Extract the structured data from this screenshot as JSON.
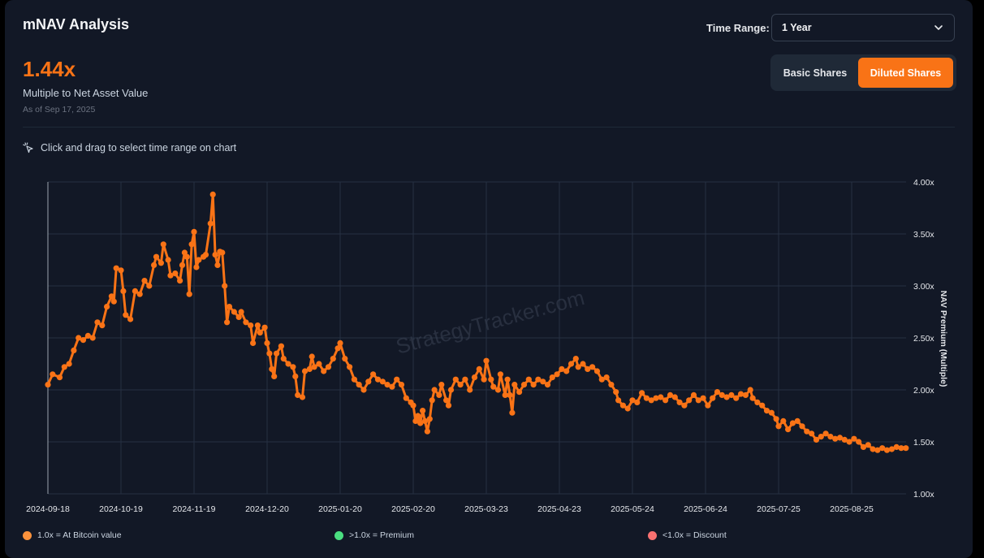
{
  "header": {
    "title": "mNAV Analysis",
    "value": "1.44x",
    "subtitle": "Multiple to Net Asset Value",
    "as_of": "As of Sep 17, 2025"
  },
  "controls": {
    "time_range_label": "Time Range:",
    "time_range_value": "1 Year",
    "share_toggle": {
      "basic_label": "Basic Shares",
      "diluted_label": "Diluted Shares",
      "selected": "Diluted Shares"
    }
  },
  "hint_text": "Click and drag to select time range on chart",
  "watermark": "StrategyTracker.com",
  "legend": [
    {
      "label": "1.0x = At Bitcoin value",
      "color": "#fb923c"
    },
    {
      "label": ">1.0x = Premium",
      "color": "#4ade80"
    },
    {
      "label": "<1.0x = Discount",
      "color": "#f87171"
    }
  ],
  "colors": {
    "accent": "#f97316",
    "background": "#121826",
    "grid": "#263042"
  },
  "chart_data": {
    "type": "line",
    "ylabel": "NAV Premium (Multiple)",
    "ylim": [
      1.0,
      4.0
    ],
    "y_ticks": [
      "1.00x",
      "1.50x",
      "2.00x",
      "2.50x",
      "3.00x",
      "3.50x",
      "4.00x"
    ],
    "y_tick_values": [
      1.0,
      1.5,
      2.0,
      2.5,
      3.0,
      3.5,
      4.0
    ],
    "x_ticks": [
      "2024-09-18",
      "2024-10-19",
      "2024-11-19",
      "2024-12-20",
      "2025-01-20",
      "2025-02-20",
      "2025-03-23",
      "2025-04-23",
      "2025-05-24",
      "2025-06-24",
      "2025-07-25",
      "2025-08-25"
    ],
    "grid": true,
    "series": [
      {
        "color": "#f97316",
        "points": [
          [
            "2024-09-18",
            2.05
          ],
          [
            "2024-09-20",
            2.15
          ],
          [
            "2024-09-23",
            2.12
          ],
          [
            "2024-09-25",
            2.22
          ],
          [
            "2024-09-27",
            2.25
          ],
          [
            "2024-09-29",
            2.38
          ],
          [
            "2024-10-01",
            2.5
          ],
          [
            "2024-10-03",
            2.48
          ],
          [
            "2024-10-05",
            2.52
          ],
          [
            "2024-10-07",
            2.5
          ],
          [
            "2024-10-09",
            2.65
          ],
          [
            "2024-10-11",
            2.62
          ],
          [
            "2024-10-13",
            2.8
          ],
          [
            "2024-10-15",
            2.9
          ],
          [
            "2024-10-16",
            2.85
          ],
          [
            "2024-10-17",
            3.17
          ],
          [
            "2024-10-19",
            3.15
          ],
          [
            "2024-10-20",
            2.95
          ],
          [
            "2024-10-21",
            2.72
          ],
          [
            "2024-10-23",
            2.68
          ],
          [
            "2024-10-25",
            2.95
          ],
          [
            "2024-10-27",
            2.92
          ],
          [
            "2024-10-29",
            3.05
          ],
          [
            "2024-10-31",
            3.0
          ],
          [
            "2024-11-02",
            3.2
          ],
          [
            "2024-11-03",
            3.28
          ],
          [
            "2024-11-05",
            3.22
          ],
          [
            "2024-11-06",
            3.4
          ],
          [
            "2024-11-08",
            3.25
          ],
          [
            "2024-11-09",
            3.1
          ],
          [
            "2024-11-11",
            3.12
          ],
          [
            "2024-11-13",
            3.05
          ],
          [
            "2024-11-14",
            3.2
          ],
          [
            "2024-11-15",
            3.32
          ],
          [
            "2024-11-16",
            3.28
          ],
          [
            "2024-11-17",
            2.92
          ],
          [
            "2024-11-18",
            3.4
          ],
          [
            "2024-11-19",
            3.52
          ],
          [
            "2024-11-20",
            3.18
          ],
          [
            "2024-11-21",
            3.25
          ],
          [
            "2024-11-23",
            3.28
          ],
          [
            "2024-11-24",
            3.3
          ],
          [
            "2024-11-26",
            3.6
          ],
          [
            "2024-11-27",
            3.88
          ],
          [
            "2024-11-28",
            3.3
          ],
          [
            "2024-11-29",
            3.2
          ],
          [
            "2024-11-30",
            3.33
          ],
          [
            "2024-12-01",
            3.32
          ],
          [
            "2024-12-02",
            3.0
          ],
          [
            "2024-12-03",
            2.65
          ],
          [
            "2024-12-04",
            2.8
          ],
          [
            "2024-12-06",
            2.75
          ],
          [
            "2024-12-08",
            2.7
          ],
          [
            "2024-12-09",
            2.75
          ],
          [
            "2024-12-11",
            2.65
          ],
          [
            "2024-12-13",
            2.62
          ],
          [
            "2024-12-14",
            2.45
          ],
          [
            "2024-12-16",
            2.62
          ],
          [
            "2024-12-17",
            2.55
          ],
          [
            "2024-12-19",
            2.6
          ],
          [
            "2024-12-20",
            2.45
          ],
          [
            "2024-12-21",
            2.35
          ],
          [
            "2024-12-22",
            2.2
          ],
          [
            "2024-12-23",
            2.13
          ],
          [
            "2024-12-24",
            2.35
          ],
          [
            "2024-12-26",
            2.42
          ],
          [
            "2024-12-27",
            2.3
          ],
          [
            "2024-12-29",
            2.25
          ],
          [
            "2024-12-31",
            2.22
          ],
          [
            "2025-01-01",
            2.13
          ],
          [
            "2025-01-02",
            1.95
          ],
          [
            "2025-01-04",
            1.93
          ],
          [
            "2025-01-05",
            2.18
          ],
          [
            "2025-01-07",
            2.2
          ],
          [
            "2025-01-08",
            2.32
          ],
          [
            "2025-01-09",
            2.22
          ],
          [
            "2025-01-11",
            2.25
          ],
          [
            "2025-01-13",
            2.18
          ],
          [
            "2025-01-15",
            2.22
          ],
          [
            "2025-01-17",
            2.3
          ],
          [
            "2025-01-19",
            2.4
          ],
          [
            "2025-01-20",
            2.45
          ],
          [
            "2025-01-22",
            2.3
          ],
          [
            "2025-01-24",
            2.22
          ],
          [
            "2025-01-26",
            2.1
          ],
          [
            "2025-01-28",
            2.05
          ],
          [
            "2025-01-30",
            2.0
          ],
          [
            "2025-02-01",
            2.08
          ],
          [
            "2025-02-03",
            2.15
          ],
          [
            "2025-02-05",
            2.1
          ],
          [
            "2025-02-07",
            2.08
          ],
          [
            "2025-02-09",
            2.05
          ],
          [
            "2025-02-11",
            2.03
          ],
          [
            "2025-02-13",
            2.1
          ],
          [
            "2025-02-15",
            2.05
          ],
          [
            "2025-02-17",
            1.92
          ],
          [
            "2025-02-19",
            1.88
          ],
          [
            "2025-02-20",
            1.85
          ],
          [
            "2025-02-21",
            1.7
          ],
          [
            "2025-02-22",
            1.75
          ],
          [
            "2025-02-23",
            1.68
          ],
          [
            "2025-02-24",
            1.8
          ],
          [
            "2025-02-25",
            1.7
          ],
          [
            "2025-02-26",
            1.6
          ],
          [
            "2025-02-27",
            1.72
          ],
          [
            "2025-02-28",
            1.9
          ],
          [
            "2025-03-01",
            2.0
          ],
          [
            "2025-03-03",
            1.95
          ],
          [
            "2025-03-04",
            2.05
          ],
          [
            "2025-03-06",
            1.9
          ],
          [
            "2025-03-07",
            1.85
          ],
          [
            "2025-03-08",
            2.0
          ],
          [
            "2025-03-10",
            2.1
          ],
          [
            "2025-03-12",
            2.05
          ],
          [
            "2025-03-14",
            2.1
          ],
          [
            "2025-03-16",
            2.0
          ],
          [
            "2025-03-18",
            2.12
          ],
          [
            "2025-03-20",
            2.2
          ],
          [
            "2025-03-22",
            2.1
          ],
          [
            "2025-03-23",
            2.28
          ],
          [
            "2025-03-25",
            2.1
          ],
          [
            "2025-03-26",
            2.03
          ],
          [
            "2025-03-28",
            2.0
          ],
          [
            "2025-03-29",
            2.15
          ],
          [
            "2025-03-31",
            1.95
          ],
          [
            "2025-04-01",
            2.1
          ],
          [
            "2025-04-02",
            1.95
          ],
          [
            "2025-04-03",
            1.78
          ],
          [
            "2025-04-04",
            2.05
          ],
          [
            "2025-04-06",
            1.98
          ],
          [
            "2025-04-08",
            2.05
          ],
          [
            "2025-04-10",
            2.1
          ],
          [
            "2025-04-12",
            2.05
          ],
          [
            "2025-04-14",
            2.1
          ],
          [
            "2025-04-16",
            2.08
          ],
          [
            "2025-04-18",
            2.05
          ],
          [
            "2025-04-20",
            2.12
          ],
          [
            "2025-04-22",
            2.15
          ],
          [
            "2025-04-24",
            2.2
          ],
          [
            "2025-04-26",
            2.18
          ],
          [
            "2025-04-28",
            2.25
          ],
          [
            "2025-04-30",
            2.3
          ],
          [
            "2025-05-01",
            2.22
          ],
          [
            "2025-05-03",
            2.25
          ],
          [
            "2025-05-05",
            2.2
          ],
          [
            "2025-05-07",
            2.22
          ],
          [
            "2025-05-09",
            2.18
          ],
          [
            "2025-05-11",
            2.1
          ],
          [
            "2025-05-13",
            2.12
          ],
          [
            "2025-05-15",
            2.05
          ],
          [
            "2025-05-17",
            1.98
          ],
          [
            "2025-05-18",
            1.9
          ],
          [
            "2025-05-20",
            1.85
          ],
          [
            "2025-05-22",
            1.82
          ],
          [
            "2025-05-24",
            1.9
          ],
          [
            "2025-05-26",
            1.88
          ],
          [
            "2025-05-28",
            1.97
          ],
          [
            "2025-05-30",
            1.92
          ],
          [
            "2025-06-01",
            1.9
          ],
          [
            "2025-06-03",
            1.92
          ],
          [
            "2025-06-05",
            1.93
          ],
          [
            "2025-06-07",
            1.9
          ],
          [
            "2025-06-09",
            1.95
          ],
          [
            "2025-06-11",
            1.93
          ],
          [
            "2025-06-13",
            1.88
          ],
          [
            "2025-06-15",
            1.85
          ],
          [
            "2025-06-17",
            1.9
          ],
          [
            "2025-06-19",
            1.95
          ],
          [
            "2025-06-21",
            1.9
          ],
          [
            "2025-06-23",
            1.92
          ],
          [
            "2025-06-25",
            1.85
          ],
          [
            "2025-06-27",
            1.92
          ],
          [
            "2025-06-29",
            1.98
          ],
          [
            "2025-07-01",
            1.95
          ],
          [
            "2025-07-03",
            1.93
          ],
          [
            "2025-07-05",
            1.95
          ],
          [
            "2025-07-07",
            1.92
          ],
          [
            "2025-07-09",
            1.96
          ],
          [
            "2025-07-11",
            1.95
          ],
          [
            "2025-07-13",
            2.0
          ],
          [
            "2025-07-14",
            1.92
          ],
          [
            "2025-07-16",
            1.88
          ],
          [
            "2025-07-18",
            1.85
          ],
          [
            "2025-07-20",
            1.8
          ],
          [
            "2025-07-22",
            1.78
          ],
          [
            "2025-07-24",
            1.72
          ],
          [
            "2025-07-25",
            1.65
          ],
          [
            "2025-07-27",
            1.7
          ],
          [
            "2025-07-29",
            1.62
          ],
          [
            "2025-07-31",
            1.68
          ],
          [
            "2025-08-02",
            1.7
          ],
          [
            "2025-08-04",
            1.65
          ],
          [
            "2025-08-06",
            1.6
          ],
          [
            "2025-08-08",
            1.58
          ],
          [
            "2025-08-10",
            1.52
          ],
          [
            "2025-08-12",
            1.55
          ],
          [
            "2025-08-14",
            1.58
          ],
          [
            "2025-08-16",
            1.55
          ],
          [
            "2025-08-18",
            1.53
          ],
          [
            "2025-08-20",
            1.54
          ],
          [
            "2025-08-22",
            1.52
          ],
          [
            "2025-08-24",
            1.5
          ],
          [
            "2025-08-26",
            1.53
          ],
          [
            "2025-08-28",
            1.5
          ],
          [
            "2025-08-30",
            1.45
          ],
          [
            "2025-09-01",
            1.47
          ],
          [
            "2025-09-03",
            1.43
          ],
          [
            "2025-09-05",
            1.42
          ],
          [
            "2025-09-07",
            1.44
          ],
          [
            "2025-09-09",
            1.42
          ],
          [
            "2025-09-11",
            1.43
          ],
          [
            "2025-09-13",
            1.45
          ],
          [
            "2025-09-15",
            1.44
          ],
          [
            "2025-09-17",
            1.44
          ]
        ]
      }
    ]
  }
}
